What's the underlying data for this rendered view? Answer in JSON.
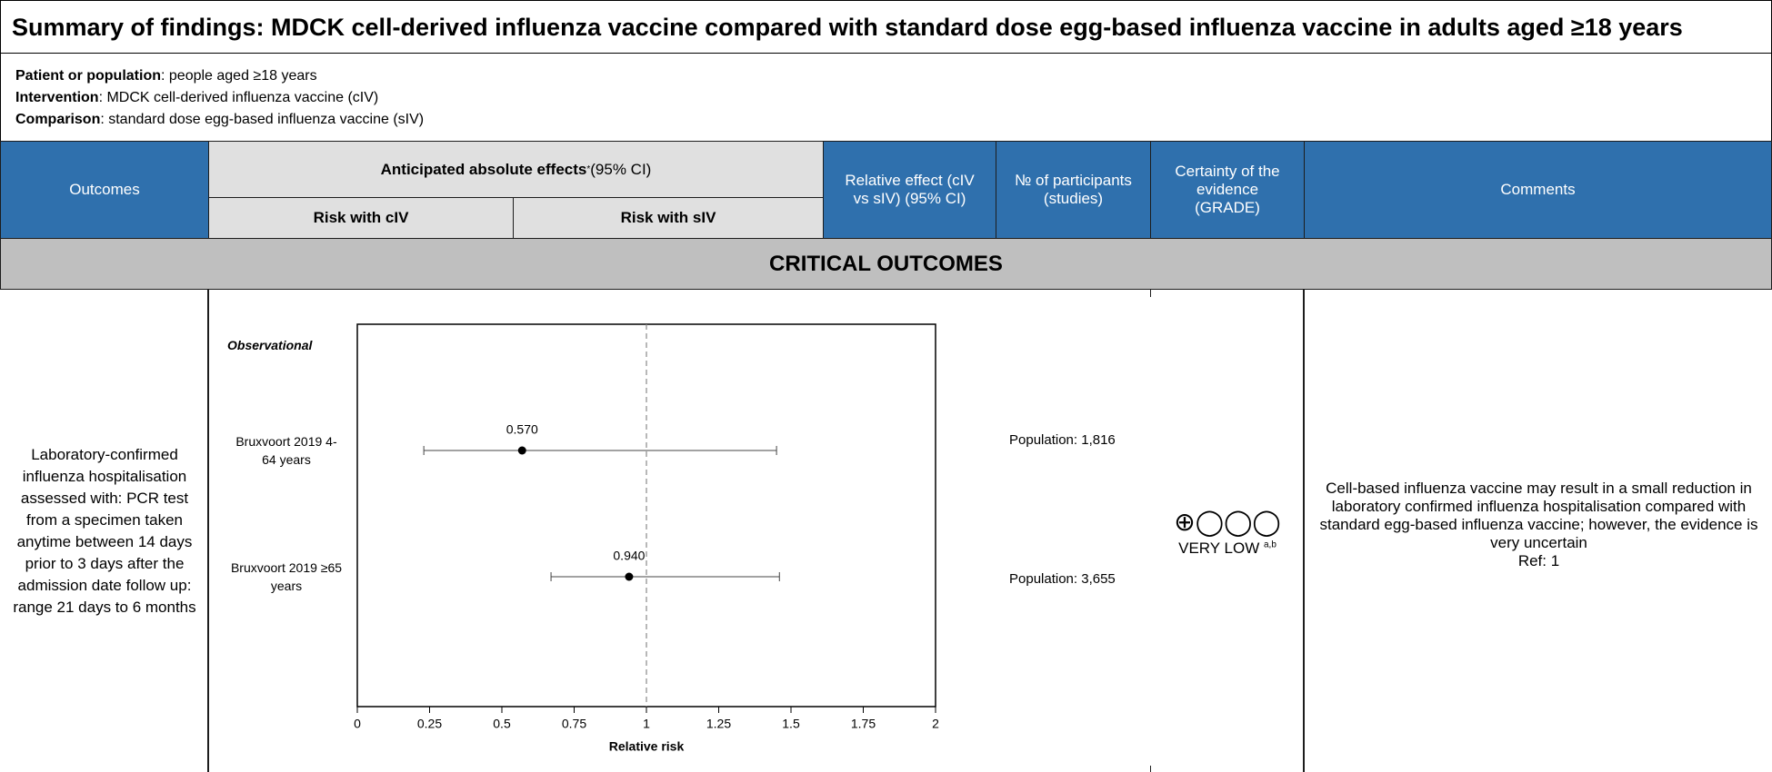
{
  "title": "Summary of findings: MDCK cell-derived influenza vaccine compared with standard dose egg-based influenza vaccine in adults aged ≥18 years",
  "setting": [
    {
      "label": "Patient or population",
      "text": ": people aged ≥18 years"
    },
    {
      "label": "Intervention",
      "text": ": MDCK cell-derived influenza vaccine (cIV)"
    },
    {
      "label": "Comparison",
      "text": ": standard dose egg-based influenza vaccine (sIV)"
    }
  ],
  "header": {
    "outcomes": "Outcomes",
    "anticipated": {
      "text": "Anticipated absolute effects",
      "mark": "*",
      "suffix": " (95% CI)"
    },
    "risk_intervention": "Risk with cIV",
    "risk_comparison": "Risk with sIV",
    "relative": "Relative effect (cIV vs sIV) (95% CI)",
    "participants": "№ of participants (studies)",
    "certainty": "Certainty of the evidence (GRADE)",
    "comments": "Comments"
  },
  "section": "CRITICAL OUTCOMES",
  "row": {
    "outcome": "Laboratory-confirmed influenza hospitalisation assessed with: PCR test from a specimen taken anytime between 14 days prior to 3 days after the admission date follow up: range 21 days to 6 months",
    "participants": [
      "Population: 1,816",
      "Population: 3,655"
    ],
    "certainty_symbols": "⊕◯◯◯",
    "certainty": "VERY LOW",
    "certainty_notes": "a,b",
    "comment": "Cell-based influenza vaccine may result in a small reduction in laboratory confirmed influenza hospitalisation compared with standard egg-based influenza vaccine; however, the evidence is very uncertain",
    "ref": "Ref: 1"
  },
  "chart_data": {
    "type": "forest",
    "group": "Observational",
    "categories": [
      "Bruxvoort 2019 4-64 years",
      "Bruxvoort 2019 ≥65 years"
    ],
    "values": [
      0.57,
      0.94
    ],
    "value_labels": [
      "0.570",
      "0.940"
    ],
    "lower": [
      0.23,
      0.67
    ],
    "upper": [
      1.45,
      1.46
    ],
    "xlabel": "Relative risk",
    "xlim": [
      0,
      2
    ],
    "xticks": [
      0,
      0.25,
      0.5,
      0.75,
      1,
      1.25,
      1.5,
      1.75,
      2
    ],
    "reference": 1,
    "color": "#000000"
  }
}
